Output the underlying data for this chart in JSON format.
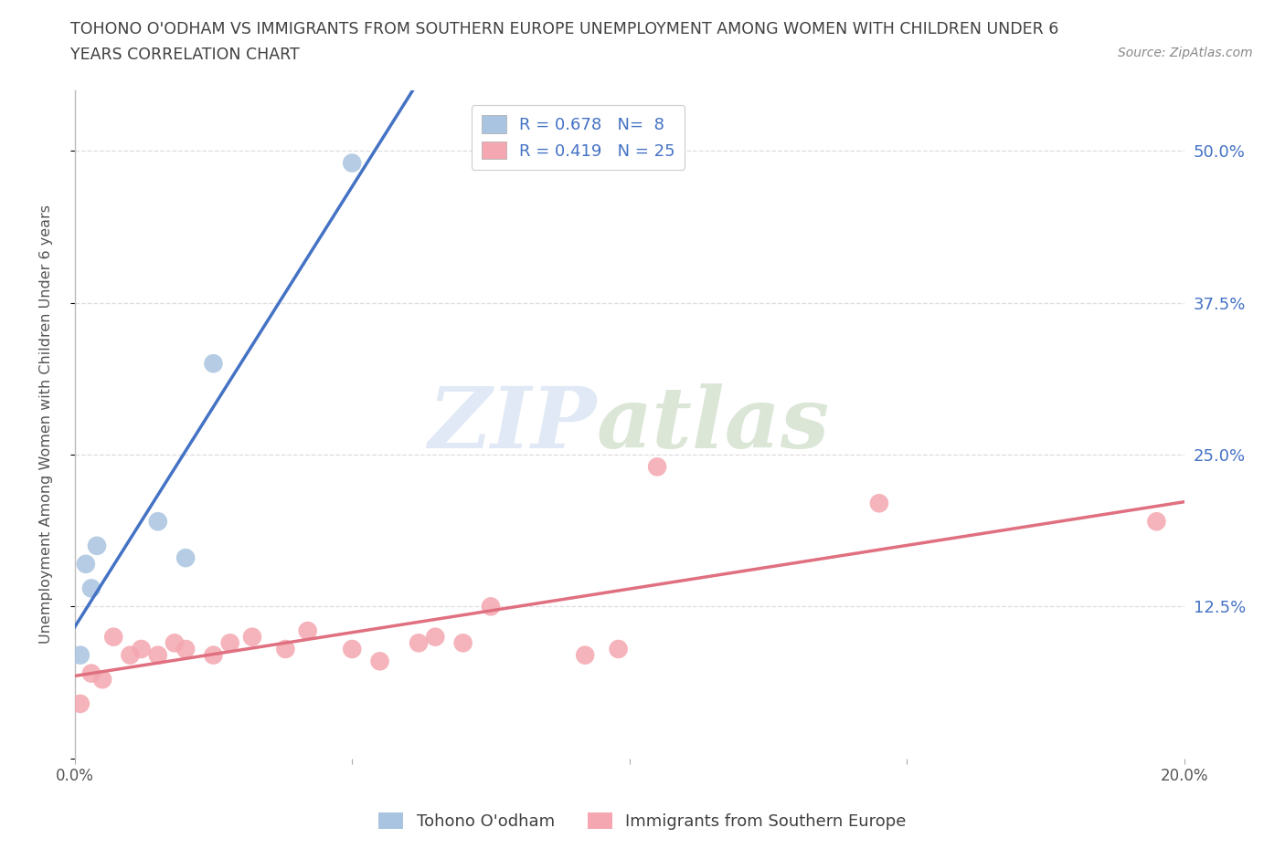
{
  "title_line1": "TOHONO O'ODHAM VS IMMIGRANTS FROM SOUTHERN EUROPE UNEMPLOYMENT AMONG WOMEN WITH CHILDREN UNDER 6",
  "title_line2": "YEARS CORRELATION CHART",
  "source": "Source: ZipAtlas.com",
  "ylabel": "Unemployment Among Women with Children Under 6 years",
  "xlim": [
    0.0,
    0.2
  ],
  "ylim": [
    0.0,
    0.55
  ],
  "x_ticks": [
    0.0,
    0.05,
    0.1,
    0.15,
    0.2
  ],
  "x_tick_labels": [
    "0.0%",
    "",
    "",
    "",
    "20.0%"
  ],
  "y_ticks": [
    0.0,
    0.125,
    0.25,
    0.375,
    0.5
  ],
  "y_tick_labels": [
    "",
    "12.5%",
    "25.0%",
    "37.5%",
    "50.0%"
  ],
  "tohono_x": [
    0.001,
    0.002,
    0.003,
    0.004,
    0.015,
    0.02,
    0.025,
    0.05
  ],
  "tohono_y": [
    0.085,
    0.16,
    0.14,
    0.175,
    0.195,
    0.165,
    0.325,
    0.49
  ],
  "immigrants_x": [
    0.001,
    0.003,
    0.005,
    0.007,
    0.01,
    0.012,
    0.015,
    0.018,
    0.02,
    0.025,
    0.028,
    0.032,
    0.038,
    0.042,
    0.05,
    0.055,
    0.062,
    0.065,
    0.07,
    0.075,
    0.092,
    0.098,
    0.105,
    0.145,
    0.195
  ],
  "immigrants_y": [
    0.045,
    0.07,
    0.065,
    0.1,
    0.085,
    0.09,
    0.085,
    0.095,
    0.09,
    0.085,
    0.095,
    0.1,
    0.09,
    0.105,
    0.09,
    0.08,
    0.095,
    0.1,
    0.095,
    0.125,
    0.085,
    0.09,
    0.24,
    0.21,
    0.195
  ],
  "tohono_color": "#a8c4e0",
  "immigrants_color": "#f4a7b0",
  "tohono_line_color": "#4472c4",
  "immigrants_line_color": "#e07080",
  "R_tohono": 0.678,
  "N_tohono": 8,
  "R_immigrants": 0.419,
  "N_immigrants": 25,
  "legend_label_1": "Tohono O'odham",
  "legend_label_2": "Immigrants from Southern Europe",
  "watermark_zip": "ZIP",
  "watermark_atlas": "atlas",
  "background_color": "#ffffff",
  "grid_color": "#dddddd",
  "title_color": "#404040",
  "axis_label_color": "#555555",
  "tick_label_color_right": "#4472c4",
  "legend_R_color": "#4472c4"
}
